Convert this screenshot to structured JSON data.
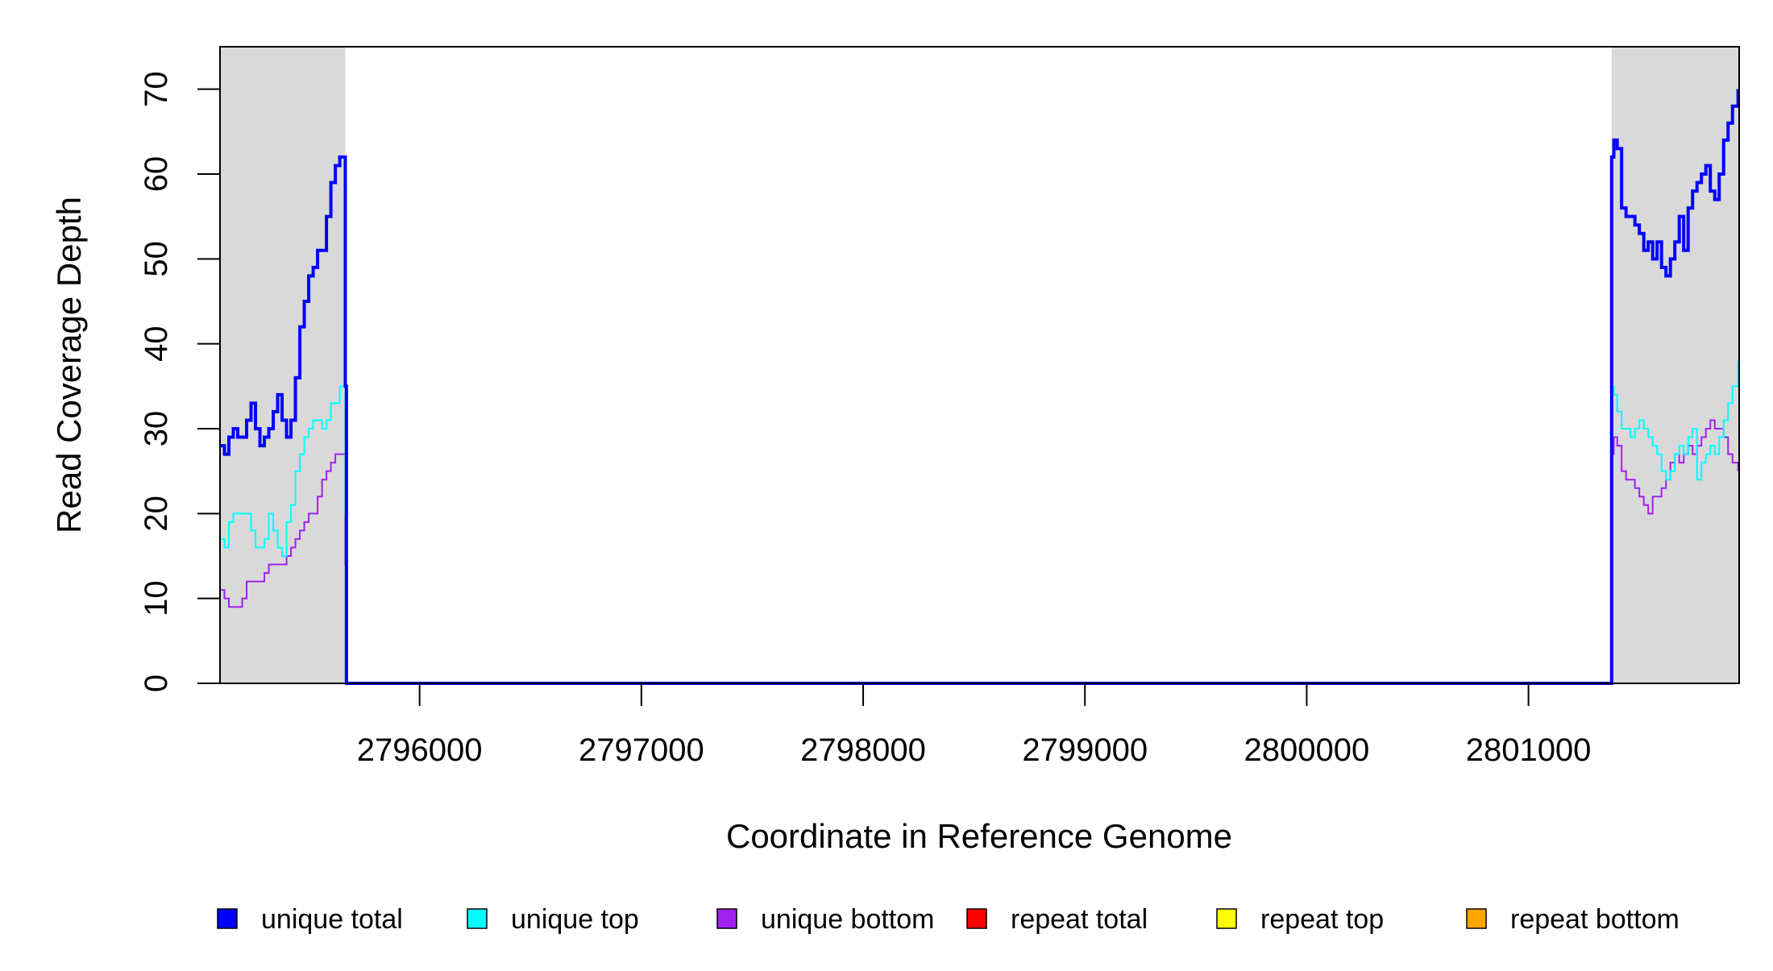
{
  "chart_data": {
    "type": "line",
    "title": "",
    "xlabel": "Coordinate in Reference Genome",
    "ylabel": "Read Coverage Depth",
    "xlim": [
      2795100,
      2801950
    ],
    "ylim": [
      0,
      75
    ],
    "x_ticks": [
      2796000,
      2797000,
      2798000,
      2799000,
      2800000,
      2801000
    ],
    "x_tick_labels": [
      "2796000",
      "2797000",
      "2798000",
      "2799000",
      "2800000",
      "2801000"
    ],
    "y_ticks": [
      0,
      10,
      20,
      30,
      40,
      50,
      60,
      70
    ],
    "y_tick_labels": [
      "0",
      "10",
      "20",
      "30",
      "40",
      "50",
      "60",
      "70"
    ],
    "grid": false,
    "legend_position": "bottom",
    "shaded_regions": [
      {
        "x_start": 2795100,
        "x_end": 2795665,
        "color": "#d9d9d9"
      },
      {
        "x_start": 2801375,
        "x_end": 2801950,
        "color": "#d9d9d9"
      }
    ],
    "series": [
      {
        "name": "unique total",
        "color": "#0000ff",
        "x": [
          2795100,
          2795120,
          2795140,
          2795160,
          2795180,
          2795200,
          2795220,
          2795240,
          2795260,
          2795280,
          2795300,
          2795320,
          2795340,
          2795360,
          2795380,
          2795400,
          2795420,
          2795440,
          2795460,
          2795480,
          2795500,
          2795520,
          2795540,
          2795560,
          2795580,
          2795600,
          2795620,
          2795640,
          2795655,
          2795665,
          2795670,
          2801370,
          2801375,
          2801385,
          2801400,
          2801420,
          2801440,
          2801460,
          2801480,
          2801500,
          2801520,
          2801540,
          2801560,
          2801580,
          2801600,
          2801620,
          2801640,
          2801660,
          2801680,
          2801700,
          2801720,
          2801740,
          2801760,
          2801780,
          2801800,
          2801820,
          2801840,
          2801860,
          2801880,
          2801900,
          2801920,
          2801945
        ],
        "y": [
          28,
          27,
          29,
          30,
          29,
          29,
          31,
          33,
          30,
          28,
          29,
          30,
          32,
          34,
          31,
          29,
          31,
          36,
          42,
          45,
          48,
          49,
          51,
          51,
          55,
          59,
          61,
          62,
          62,
          35,
          0,
          0,
          62,
          64,
          63,
          56,
          55,
          55,
          54,
          53,
          51,
          52,
          50,
          52,
          49,
          48,
          50,
          52,
          55,
          51,
          56,
          58,
          59,
          60,
          61,
          58,
          57,
          60,
          64,
          66,
          68,
          70
        ]
      },
      {
        "name": "unique top",
        "color": "#00ffff",
        "x": [
          2795100,
          2795120,
          2795140,
          2795160,
          2795180,
          2795200,
          2795220,
          2795240,
          2795260,
          2795280,
          2795300,
          2795320,
          2795340,
          2795360,
          2795380,
          2795400,
          2795420,
          2795440,
          2795460,
          2795480,
          2795500,
          2795520,
          2795540,
          2795560,
          2795580,
          2795600,
          2795620,
          2795640,
          2795655,
          2795665,
          2795670,
          2801370,
          2801375,
          2801385,
          2801400,
          2801420,
          2801440,
          2801460,
          2801480,
          2801500,
          2801520,
          2801540,
          2801560,
          2801580,
          2801600,
          2801620,
          2801640,
          2801660,
          2801680,
          2801700,
          2801720,
          2801740,
          2801760,
          2801780,
          2801800,
          2801820,
          2801840,
          2801860,
          2801880,
          2801900,
          2801920,
          2801945
        ],
        "y": [
          17,
          16,
          19,
          20,
          20,
          20,
          20,
          18,
          16,
          16,
          17,
          20,
          18,
          16,
          15,
          19,
          21,
          25,
          27,
          29,
          30,
          31,
          31,
          30,
          31,
          33,
          33,
          35,
          35,
          20,
          0,
          0,
          35,
          34,
          32,
          30,
          30,
          29,
          30,
          31,
          30,
          29,
          28,
          27,
          25,
          24,
          25,
          27,
          28,
          27,
          29,
          30,
          24,
          26,
          27,
          28,
          27,
          29,
          31,
          33,
          35,
          38
        ]
      },
      {
        "name": "unique bottom",
        "color": "#a020f0",
        "x": [
          2795100,
          2795120,
          2795140,
          2795160,
          2795180,
          2795200,
          2795220,
          2795240,
          2795260,
          2795280,
          2795300,
          2795320,
          2795340,
          2795360,
          2795380,
          2795400,
          2795420,
          2795440,
          2795460,
          2795480,
          2795500,
          2795520,
          2795540,
          2795560,
          2795580,
          2795600,
          2795620,
          2795640,
          2795655,
          2795665,
          2795670,
          2801370,
          2801375,
          2801385,
          2801400,
          2801420,
          2801440,
          2801460,
          2801480,
          2801500,
          2801520,
          2801540,
          2801560,
          2801580,
          2801600,
          2801620,
          2801640,
          2801660,
          2801680,
          2801700,
          2801720,
          2801740,
          2801760,
          2801780,
          2801800,
          2801820,
          2801840,
          2801860,
          2801880,
          2801900,
          2801920,
          2801945
        ],
        "y": [
          11,
          10,
          9,
          9,
          9,
          10,
          12,
          12,
          12,
          12,
          13,
          14,
          14,
          14,
          14,
          15,
          16,
          17,
          18,
          19,
          20,
          20,
          22,
          24,
          25,
          26,
          27,
          27,
          27,
          14,
          0,
          0,
          27,
          29,
          28,
          25,
          24,
          24,
          23,
          22,
          21,
          20,
          22,
          22,
          23,
          24,
          26,
          27,
          26,
          27,
          28,
          27,
          28,
          29,
          30,
          31,
          30,
          30,
          29,
          27,
          26,
          25
        ]
      },
      {
        "name": "repeat total",
        "color": "#ff0000",
        "x": [
          2795100,
          2801950
        ],
        "y": [
          0,
          0
        ]
      },
      {
        "name": "repeat top",
        "color": "#ffff00",
        "x": [
          2795100,
          2801950
        ],
        "y": [
          0,
          0
        ]
      },
      {
        "name": "repeat bottom",
        "color": "#ffa500",
        "x": [
          2795100,
          2801950
        ],
        "y": [
          0,
          0
        ]
      }
    ]
  }
}
